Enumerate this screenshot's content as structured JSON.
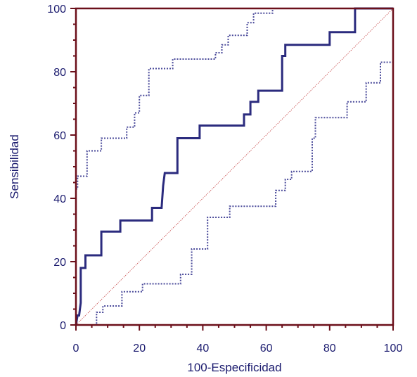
{
  "chart_data": {
    "type": "line",
    "title": "",
    "xlabel": "100-Especificidad",
    "ylabel": "Sensibilidad",
    "xlim": [
      0,
      100
    ],
    "ylim": [
      0,
      100
    ],
    "x_ticks": [
      "0",
      "20",
      "40",
      "60",
      "80",
      "100"
    ],
    "y_ticks": [
      "0",
      "20",
      "40",
      "60",
      "80",
      "100"
    ],
    "grid": false,
    "legend": "none",
    "colors": {
      "roc": "#2b2b7e",
      "ci": "#4a4a9a",
      "diagonal": "#c44040",
      "frame": "#6b0f1a",
      "text": "#1a1a6e"
    },
    "series": [
      {
        "role": "roc",
        "x": [
          0,
          0.5,
          1.0,
          1.5,
          1.5,
          2.5,
          3.0,
          3.0,
          8.0,
          8.0,
          14.0,
          14.0,
          24.0,
          24.0,
          27.0,
          27.5,
          28.0,
          32.0,
          32.0,
          39.0,
          39.0,
          53.0,
          53.0,
          55.0,
          55.0,
          57.5,
          57.5,
          65.0,
          65.0,
          66.0,
          66.0,
          80.0,
          80.0,
          88.0,
          88.0,
          100.0
        ],
        "y": [
          0,
          3.0,
          3.0,
          7.0,
          18.0,
          18.0,
          18.0,
          22.0,
          22.0,
          29.5,
          29.5,
          33.0,
          33.0,
          37.0,
          37.0,
          44.0,
          48.0,
          48.0,
          59.0,
          59.0,
          63.0,
          63.0,
          66.5,
          66.5,
          70.5,
          70.5,
          74.0,
          74.0,
          85.0,
          85.0,
          88.5,
          88.5,
          92.5,
          92.5,
          100,
          100
        ]
      },
      {
        "role": "ci_upper",
        "x": [
          0,
          0.5,
          0.5,
          3.5,
          3.5,
          8.0,
          8.0,
          16.0,
          16.0,
          18.5,
          18.5,
          20.0,
          20.0,
          23.0,
          23.0,
          30.5,
          30.5,
          44.0,
          44.0,
          46.0,
          46.0,
          48.0,
          48.0,
          54.0,
          54.0,
          56.0,
          56.0,
          62.0,
          62.0,
          72.0,
          72.0,
          100.0
        ],
        "y": [
          43.0,
          43.0,
          47.0,
          47.0,
          55.0,
          55.0,
          59.0,
          59.0,
          62.5,
          62.5,
          67.0,
          67.0,
          72.5,
          72.5,
          81.0,
          81.0,
          84.0,
          84.0,
          86.0,
          86.0,
          88.5,
          88.5,
          91.5,
          91.5,
          95.5,
          95.5,
          98.5,
          98.5,
          100.0,
          100.0,
          100.0,
          100.0
        ]
      },
      {
        "role": "ci_lower",
        "x": [
          6.0,
          6.5,
          6.5,
          8.5,
          8.5,
          14.5,
          14.5,
          21.0,
          21.0,
          33.0,
          33.0,
          36.5,
          36.5,
          41.5,
          41.5,
          48.5,
          48.5,
          63.0,
          63.0,
          66.0,
          66.0,
          68.0,
          68.0,
          74.5,
          74.5,
          75.5,
          75.5,
          85.5,
          85.5,
          91.5,
          91.5,
          96.0,
          96.0,
          100.0,
          100.0
        ],
        "y": [
          0.0,
          0.0,
          4.0,
          4.0,
          6.0,
          6.0,
          10.5,
          10.5,
          13.0,
          13.0,
          16.0,
          16.0,
          24.0,
          24.0,
          34.0,
          34.0,
          37.5,
          37.5,
          42.5,
          42.5,
          46.0,
          46.0,
          48.5,
          48.5,
          59.0,
          59.0,
          65.5,
          65.5,
          70.5,
          70.5,
          76.5,
          76.5,
          83.0,
          83.0,
          100.0
        ]
      },
      {
        "role": "diagonal",
        "x": [
          0,
          100
        ],
        "y": [
          0,
          100
        ]
      }
    ]
  }
}
